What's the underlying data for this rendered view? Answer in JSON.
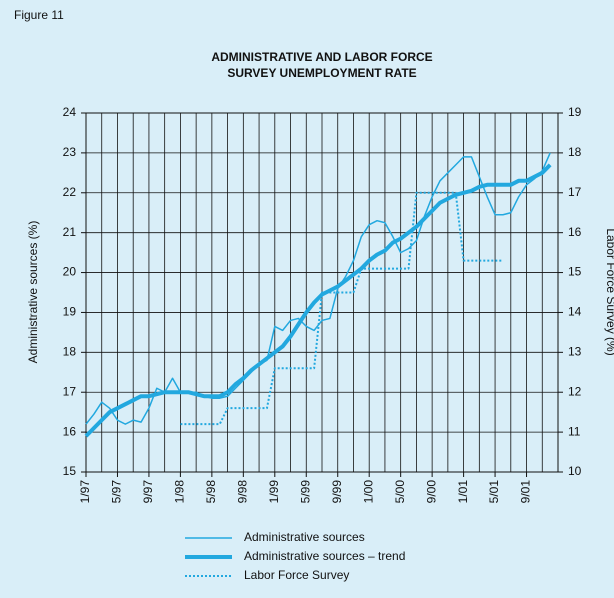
{
  "figure_label": "Figure 11",
  "chart_data": {
    "type": "line",
    "title": "ADMINISTRATIVE AND LABOR FORCE",
    "subtitle": "SURVEY UNEMPLOYMENT RATE",
    "y_label": "Administrative sources (%)",
    "y2_label": "Labor Force Survey (%)",
    "categories": [
      "1/97",
      null,
      null,
      null,
      "5/97",
      null,
      null,
      null,
      "9/97",
      null,
      null,
      null,
      "1/98",
      null,
      null,
      null,
      "5/98",
      null,
      null,
      null,
      "9/98",
      null,
      null,
      null,
      "1/99",
      null,
      null,
      null,
      "5/99",
      null,
      null,
      null,
      "9/99",
      null,
      null,
      null,
      "1/00",
      null,
      null,
      null,
      "5/00",
      null,
      null,
      null,
      "9/00",
      null,
      null,
      null,
      "1/01",
      null,
      null,
      null,
      "5/01",
      null,
      null,
      null,
      "9/01",
      null,
      null,
      null
    ],
    "ylim": [
      15,
      24
    ],
    "yticks": [
      15,
      16,
      17,
      18,
      19,
      20,
      21,
      22,
      23,
      24
    ],
    "y2lim": [
      10,
      19
    ],
    "y2ticks": [
      10,
      11,
      12,
      13,
      14,
      15,
      16,
      17,
      18,
      19
    ],
    "grid": true,
    "series": [
      {
        "name": "Administrative sources",
        "color": "#22a8df",
        "style": "thin",
        "values": [
          16.2,
          16.45,
          16.75,
          16.6,
          16.3,
          16.2,
          16.3,
          16.25,
          16.6,
          17.1,
          17.0,
          17.35,
          17.0,
          17.0,
          17.0,
          16.9,
          16.85,
          16.85,
          16.9,
          17.1,
          17.3,
          17.5,
          17.7,
          17.8,
          18.65,
          18.55,
          18.8,
          18.85,
          18.65,
          18.55,
          18.8,
          18.85,
          19.6,
          19.9,
          20.3,
          20.9,
          21.2,
          21.3,
          21.25,
          20.9,
          20.5,
          20.6,
          20.8,
          21.4,
          21.9,
          22.3,
          22.5,
          22.7,
          22.9,
          22.9,
          22.4,
          21.9,
          21.45,
          21.45,
          21.5,
          21.9,
          22.2,
          22.35,
          22.55,
          23.0
        ]
      },
      {
        "name": "Administrative sources – trend",
        "color": "#22a8df",
        "style": "thick",
        "values": [
          15.9,
          16.1,
          16.3,
          16.5,
          16.6,
          16.7,
          16.8,
          16.9,
          16.9,
          16.95,
          17.0,
          17.0,
          17.0,
          17.0,
          16.95,
          16.9,
          16.9,
          16.9,
          17.0,
          17.2,
          17.35,
          17.55,
          17.7,
          17.85,
          18.0,
          18.15,
          18.4,
          18.7,
          19.0,
          19.25,
          19.45,
          19.55,
          19.65,
          19.8,
          19.95,
          20.1,
          20.3,
          20.45,
          20.55,
          20.75,
          20.85,
          21.0,
          21.15,
          21.35,
          21.55,
          21.75,
          21.85,
          21.95,
          22.0,
          22.05,
          22.15,
          22.2,
          22.2,
          22.2,
          22.2,
          22.3,
          22.3,
          22.4,
          22.5,
          22.7
        ]
      },
      {
        "name": "Labor Force Survey",
        "color": "#22a8df",
        "style": "dotted",
        "axis": "y2",
        "values": [
          null,
          null,
          null,
          null,
          null,
          null,
          null,
          null,
          null,
          null,
          null,
          null,
          11.2,
          11.2,
          11.2,
          11.2,
          11.2,
          11.2,
          11.6,
          11.6,
          11.6,
          11.6,
          11.6,
          11.6,
          12.6,
          12.6,
          12.6,
          12.6,
          12.6,
          12.6,
          14.5,
          14.5,
          14.5,
          14.5,
          14.5,
          15.1,
          15.1,
          15.1,
          15.1,
          15.1,
          15.1,
          15.1,
          17.0,
          17.0,
          17.0,
          17.0,
          17.0,
          17.0,
          15.3,
          15.3,
          15.3,
          15.3,
          15.3,
          15.3,
          null,
          null,
          null,
          null,
          null,
          null
        ]
      }
    ]
  }
}
